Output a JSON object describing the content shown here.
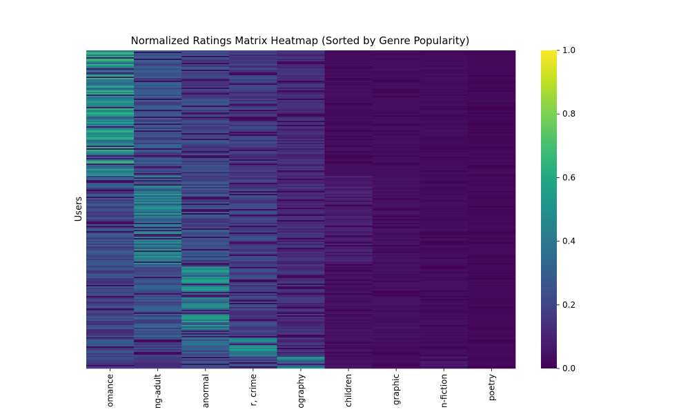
{
  "chart_data": {
    "type": "heatmap",
    "title": "Normalized Ratings Matrix Heatmap (Sorted by Genre Popularity)",
    "xlabel": "",
    "ylabel": "Users",
    "columns": [
      "omance",
      "ng-adult",
      "anormal",
      "r, crime",
      "ography",
      "children",
      "graphic",
      "n-fiction",
      "poetry"
    ],
    "colorscale": "viridis",
    "colorbar_range": [
      0,
      1
    ],
    "colorbar_ticks": [
      "0.0",
      "0.2",
      "0.4",
      "0.6",
      "0.8",
      "1.0"
    ],
    "row_segments": [
      {
        "rows": "top block",
        "column_means": [
          0.48,
          0.24,
          0.2,
          0.17,
          0.12,
          0.03,
          0.03,
          0.03,
          0.02
        ]
      },
      {
        "rows": "second block",
        "column_means": [
          0.22,
          0.4,
          0.22,
          0.18,
          0.12,
          0.08,
          0.04,
          0.03,
          0.02
        ]
      },
      {
        "rows": "third block",
        "column_means": [
          0.2,
          0.24,
          0.42,
          0.18,
          0.13,
          0.04,
          0.04,
          0.03,
          0.02
        ]
      },
      {
        "rows": "fourth block",
        "column_means": [
          0.2,
          0.18,
          0.28,
          0.42,
          0.13,
          0.04,
          0.03,
          0.03,
          0.02
        ]
      },
      {
        "rows": "bottom block",
        "column_means": [
          0.18,
          0.16,
          0.2,
          0.2,
          0.38,
          0.04,
          0.03,
          0.06,
          0.02
        ]
      }
    ]
  }
}
